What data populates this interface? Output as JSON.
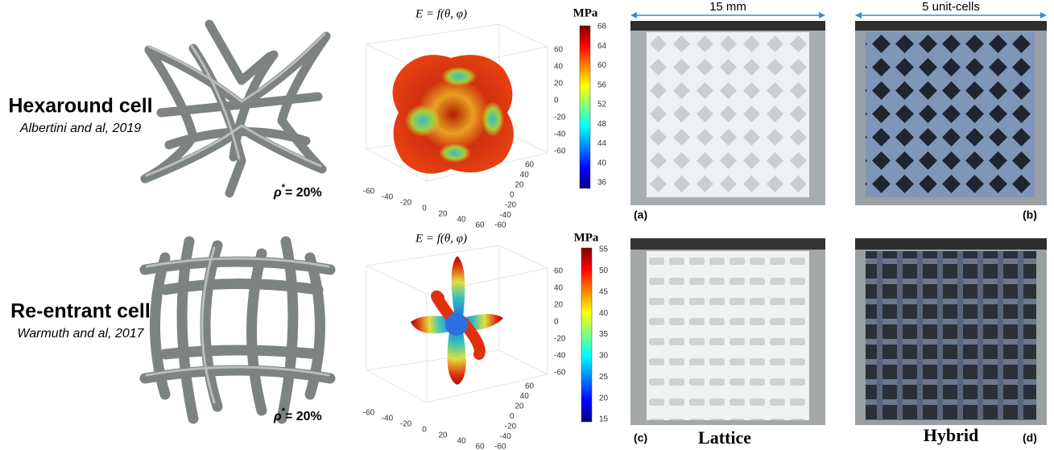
{
  "rows": [
    {
      "cell": {
        "name": "Hexaround cell",
        "reference": "Albertini and al, 2019",
        "density": {
          "symbol": "ρ",
          "superscript": "*",
          "text": "= 20%"
        }
      },
      "plot": {
        "title": "E = f(θ, φ)",
        "colorbar": {
          "unit": "MPa",
          "ticks": [
            68,
            64,
            60,
            56,
            52,
            48,
            44,
            40,
            36
          ]
        },
        "z_ticks": [
          60,
          40,
          20,
          0,
          -20,
          -40,
          -60
        ],
        "x_ticks": [
          -60,
          -40,
          -20,
          0,
          20,
          40,
          60
        ],
        "y_ticks": [
          60,
          40,
          20,
          0,
          -20,
          -40,
          -60
        ]
      }
    },
    {
      "cell": {
        "name": "Re-entrant cell",
        "reference": "Warmuth and al, 2017",
        "density": {
          "symbol": "ρ",
          "superscript": "*",
          "text": "= 20%"
        }
      },
      "plot": {
        "title": "E = f(θ, φ)",
        "colorbar": {
          "unit": "MPa",
          "ticks": [
            55,
            50,
            45,
            40,
            35,
            30,
            25,
            20,
            15
          ]
        },
        "z_ticks": [
          60,
          40,
          20,
          0,
          -20,
          -40,
          -60
        ],
        "x_ticks": [
          -60,
          -40,
          -20,
          0,
          20,
          40,
          60
        ],
        "y_ticks": [
          60,
          40,
          20,
          0,
          -20,
          -40,
          -60
        ]
      }
    }
  ],
  "photos": {
    "dimension_labels": [
      "15 mm",
      "5 unit-cells"
    ],
    "panel_labels": [
      "(a)",
      "(b)",
      "(c)",
      "(d)"
    ],
    "column_labels": [
      "Lattice",
      "Hybrid"
    ]
  }
}
